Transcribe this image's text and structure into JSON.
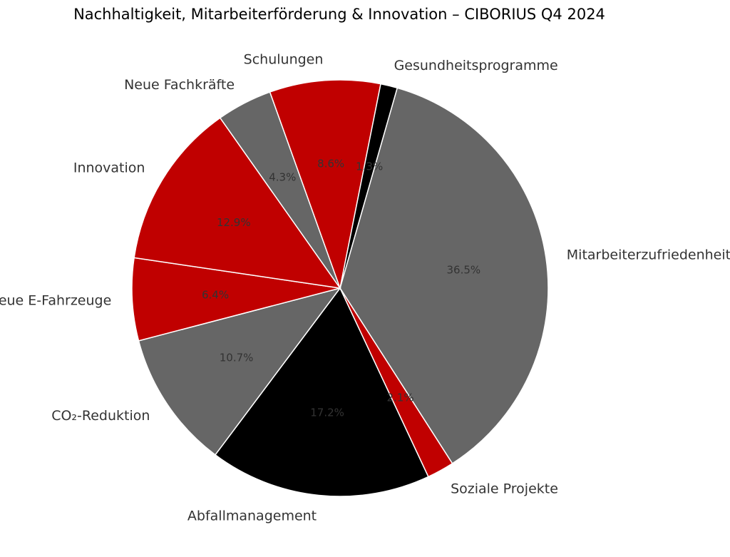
{
  "chart_data": {
    "type": "pie",
    "title": "Nachhaltigkeit, Mitarbeiterförderung & Innovation – CIBORIUS Q4 2024",
    "slices": [
      {
        "label": "Mitarbeiterzufriedenheit",
        "value": 36.5,
        "pct_text": "36.5%",
        "color": "#666666"
      },
      {
        "label": "Soziale Projekte",
        "value": 2.1,
        "pct_text": "2.1%",
        "color": "#c00000"
      },
      {
        "label": "Abfallmanagement",
        "value": 17.2,
        "pct_text": "17.2%",
        "color": "#000000"
      },
      {
        "label": "CO₂-Reduktion",
        "value": 10.7,
        "pct_text": "10.7%",
        "color": "#666666"
      },
      {
        "label": "Neue E-Fahrzeuge",
        "value": 6.4,
        "pct_text": "6.4%",
        "color": "#c00000"
      },
      {
        "label": "Innovation",
        "value": 12.9,
        "pct_text": "12.9%",
        "color": "#c00000"
      },
      {
        "label": "Neue Fachkräfte",
        "value": 4.3,
        "pct_text": "4.3%",
        "color": "#666666"
      },
      {
        "label": "Schulungen",
        "value": 8.6,
        "pct_text": "8.6%",
        "color": "#c00000"
      },
      {
        "label": "Gesundheitsprogramme",
        "value": 1.3,
        "pct_text": "1.3%",
        "color": "#000000"
      }
    ],
    "legend": "none"
  }
}
